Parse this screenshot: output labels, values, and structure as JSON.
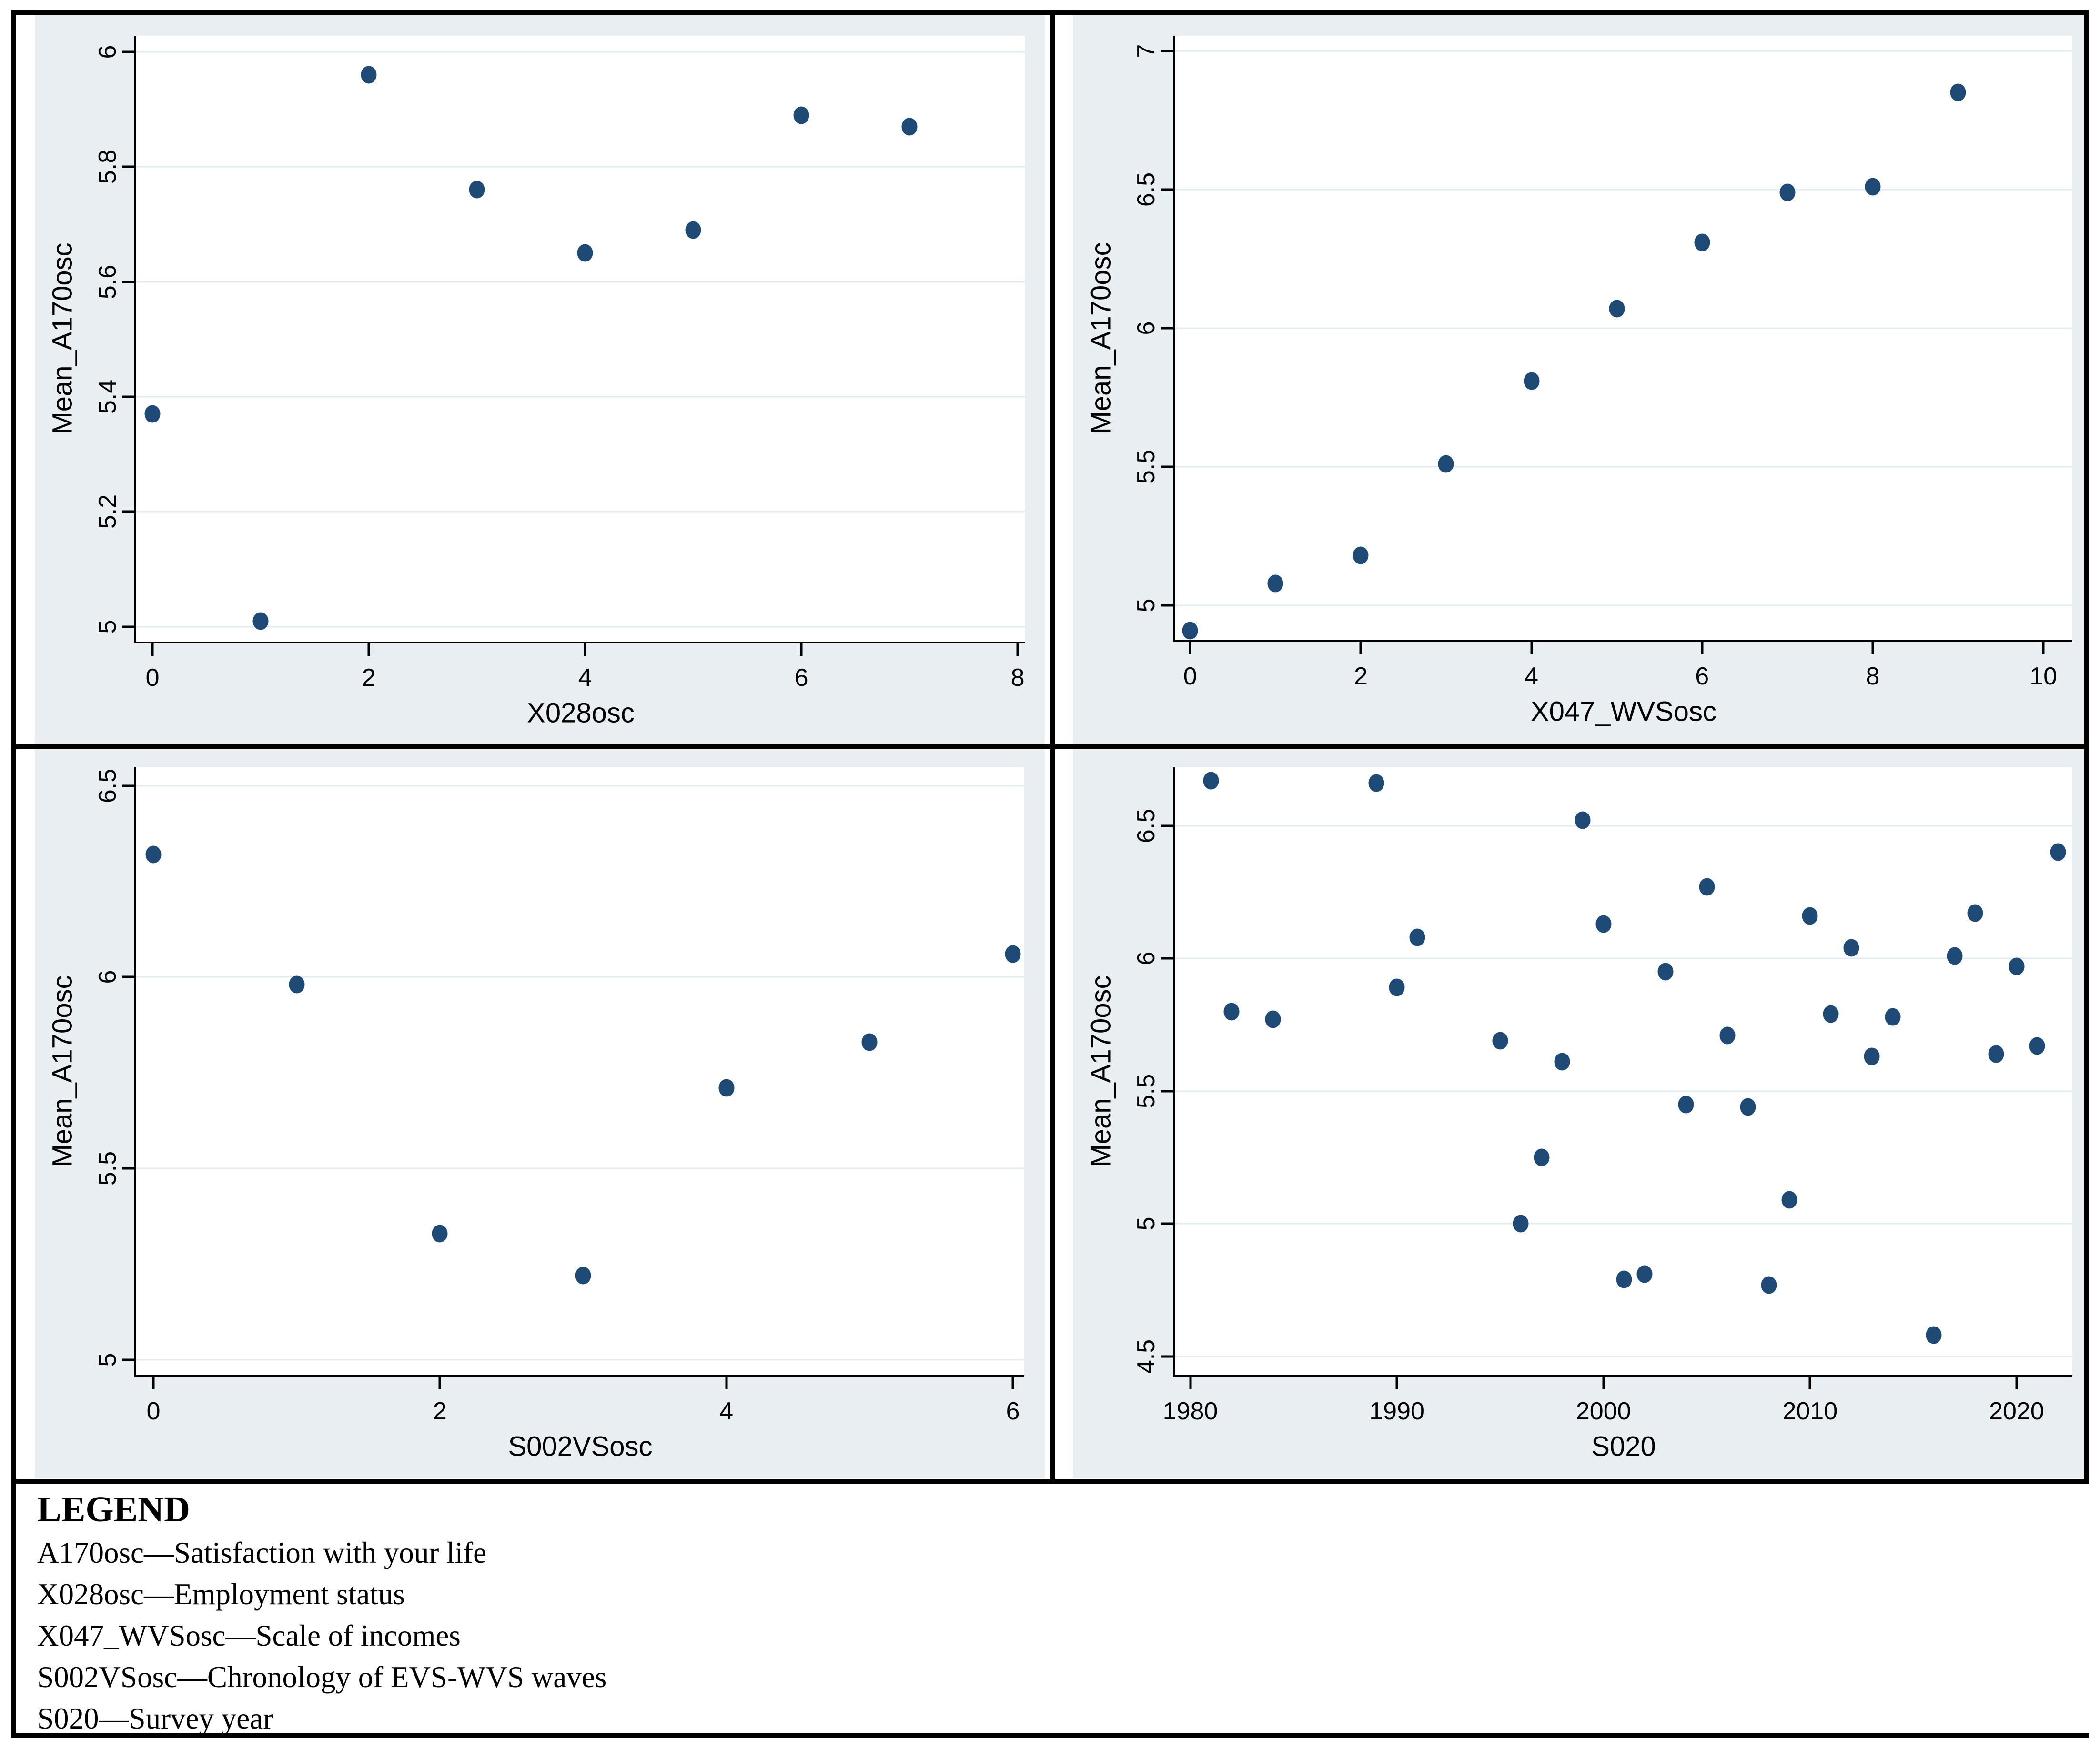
{
  "legend": {
    "title": "LEGEND",
    "entries": [
      "A170osc—Satisfaction with your life",
      "X028osc—Employment status",
      "X047_WVSosc—Scale of incomes",
      "S002VSosc—Chronology of EVS-WVS waves",
      "S020—Survey year"
    ]
  },
  "colors": {
    "marker": "#1f4a75",
    "panel_bg": "#e8eef1",
    "plot_bg": "#ffffff",
    "grid": "#e2ebef",
    "axis": "#000000",
    "border": "#000000"
  },
  "chart_data": [
    {
      "type": "scatter",
      "position": "top-left",
      "title": "",
      "xlabel": "X028osc",
      "ylabel": "Mean_A170osc",
      "xlim": [
        -0.15,
        8.07
      ],
      "ylim": [
        4.974,
        6.028
      ],
      "xticks": [
        0,
        2,
        4,
        6,
        8
      ],
      "yticks": [
        5,
        5.2,
        5.4,
        5.6,
        5.8,
        6
      ],
      "grid": "horizontal",
      "legend_position": "none",
      "points": [
        [
          0,
          5.37
        ],
        [
          1,
          5.01
        ],
        [
          2,
          5.96
        ],
        [
          3,
          5.76
        ],
        [
          4,
          5.65
        ],
        [
          5,
          5.69
        ],
        [
          6,
          5.89
        ],
        [
          7,
          5.87
        ]
      ]
    },
    {
      "type": "scatter",
      "position": "top-right",
      "title": "",
      "xlabel": "X047_WVSosc",
      "ylabel": "Mean_A170osc",
      "xlim": [
        -0.18,
        10.34
      ],
      "ylim": [
        4.875,
        7.055
      ],
      "xticks": [
        0,
        2,
        4,
        6,
        8,
        10
      ],
      "yticks": [
        5,
        5.5,
        6,
        6.5,
        7
      ],
      "grid": "horizontal",
      "legend_position": "none",
      "points": [
        [
          0,
          4.91
        ],
        [
          1,
          5.08
        ],
        [
          2,
          5.18
        ],
        [
          3,
          5.51
        ],
        [
          4,
          5.81
        ],
        [
          5,
          6.07
        ],
        [
          6,
          6.31
        ],
        [
          7,
          6.49
        ],
        [
          8,
          6.51
        ],
        [
          9,
          6.85
        ]
      ]
    },
    {
      "type": "scatter",
      "position": "bottom-left",
      "title": "",
      "xlabel": "S002VSosc",
      "ylabel": "Mean_A170osc",
      "xlim": [
        -0.12,
        6.08
      ],
      "ylim": [
        4.96,
        6.548
      ],
      "xticks": [
        0,
        2,
        4,
        6
      ],
      "yticks": [
        5,
        5.5,
        6,
        6.5
      ],
      "grid": "horizontal",
      "legend_position": "none",
      "points": [
        [
          0,
          6.32
        ],
        [
          1,
          5.98
        ],
        [
          2,
          5.33
        ],
        [
          3,
          5.22
        ],
        [
          4,
          5.71
        ],
        [
          5,
          5.83
        ],
        [
          6,
          6.06
        ]
      ]
    },
    {
      "type": "scatter",
      "position": "bottom-right",
      "title": "",
      "xlabel": "S020",
      "ylabel": "Mean_A170osc",
      "xlim": [
        1979.25,
        2022.7
      ],
      "ylim": [
        4.43,
        6.72
      ],
      "xticks": [
        1980,
        1990,
        2000,
        2010,
        2020
      ],
      "yticks": [
        4.5,
        5,
        5.5,
        6,
        6.5
      ],
      "grid": "horizontal",
      "legend_position": "none",
      "points": [
        [
          1981,
          6.67
        ],
        [
          1982,
          5.8
        ],
        [
          1984,
          5.77
        ],
        [
          1989,
          6.66
        ],
        [
          1990,
          5.89
        ],
        [
          1991,
          6.08
        ],
        [
          1995,
          5.69
        ],
        [
          1996,
          5.0
        ],
        [
          1997,
          5.25
        ],
        [
          1998,
          5.61
        ],
        [
          1999,
          6.52
        ],
        [
          2000,
          6.13
        ],
        [
          2001,
          4.79
        ],
        [
          2002,
          4.81
        ],
        [
          2003,
          5.95
        ],
        [
          2004,
          5.45
        ],
        [
          2005,
          6.27
        ],
        [
          2006,
          5.71
        ],
        [
          2007,
          5.44
        ],
        [
          2008,
          4.77
        ],
        [
          2009,
          5.09
        ],
        [
          2010,
          6.16
        ],
        [
          2011,
          5.79
        ],
        [
          2012,
          6.04
        ],
        [
          2013,
          5.63
        ],
        [
          2014,
          5.78
        ],
        [
          2016,
          4.58
        ],
        [
          2017,
          6.01
        ],
        [
          2018,
          6.17
        ],
        [
          2019,
          5.64
        ],
        [
          2020,
          5.97
        ],
        [
          2021,
          5.67
        ],
        [
          2022,
          6.4
        ]
      ]
    }
  ]
}
